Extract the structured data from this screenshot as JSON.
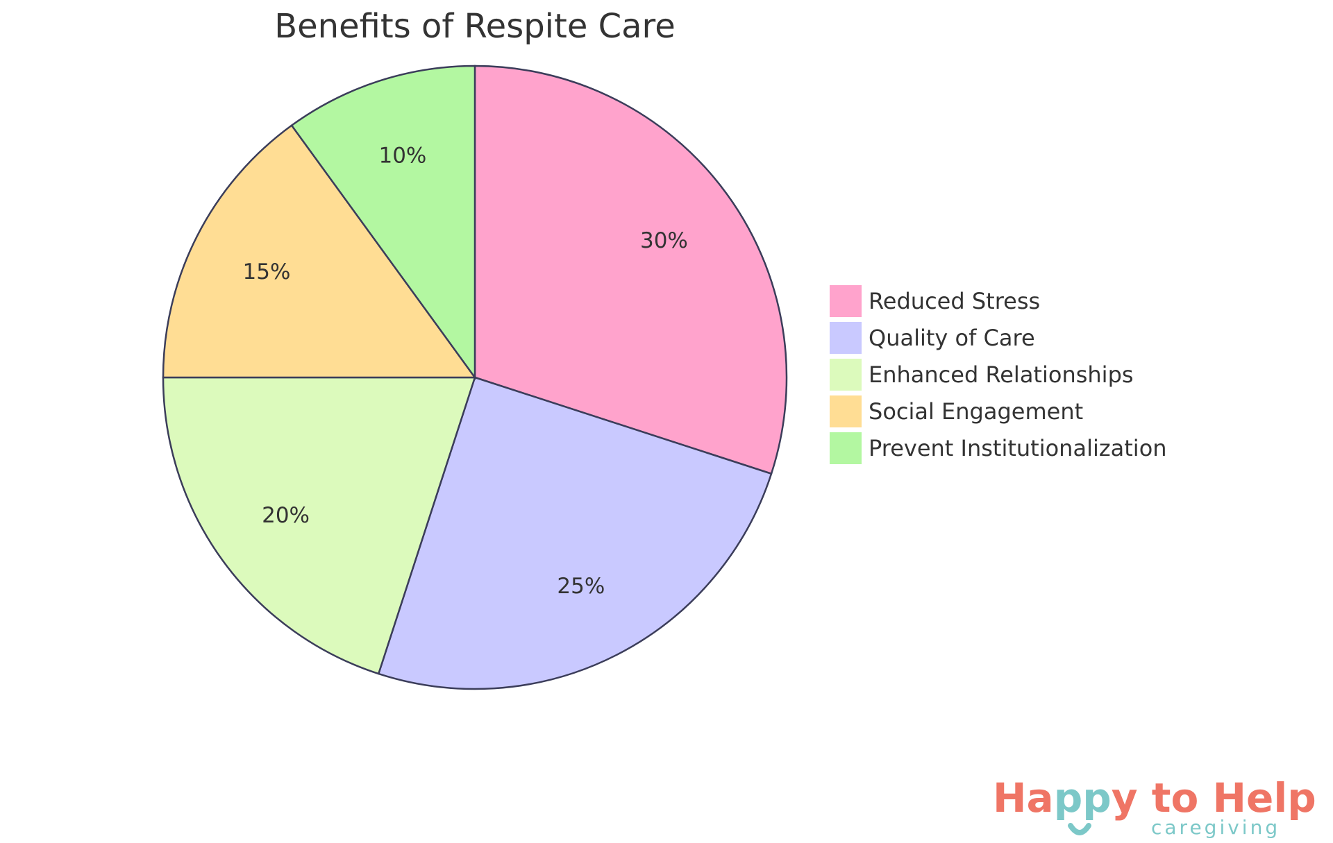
{
  "chart_data": {
    "type": "pie",
    "title": "Benefits of Respite Care",
    "categories": [
      "Reduced Stress",
      "Quality of Care",
      "Enhanced Relationships",
      "Social Engagement",
      "Prevent Institutionalization"
    ],
    "values": [
      30,
      25,
      20,
      15,
      10
    ],
    "data_labels": [
      "30%",
      "25%",
      "20%",
      "15%",
      "10%"
    ],
    "colors": [
      "#ffa3cc",
      "#c9c9ff",
      "#dcfabc",
      "#ffdd94",
      "#b3f7a1"
    ],
    "stroke_color": "#3b3d5a",
    "legend_position": "right"
  },
  "logo": {
    "main": "Happy to Help",
    "sub": "caregiving",
    "colors": {
      "coral": "#ef7565",
      "teal": "#7cc8c8"
    }
  }
}
